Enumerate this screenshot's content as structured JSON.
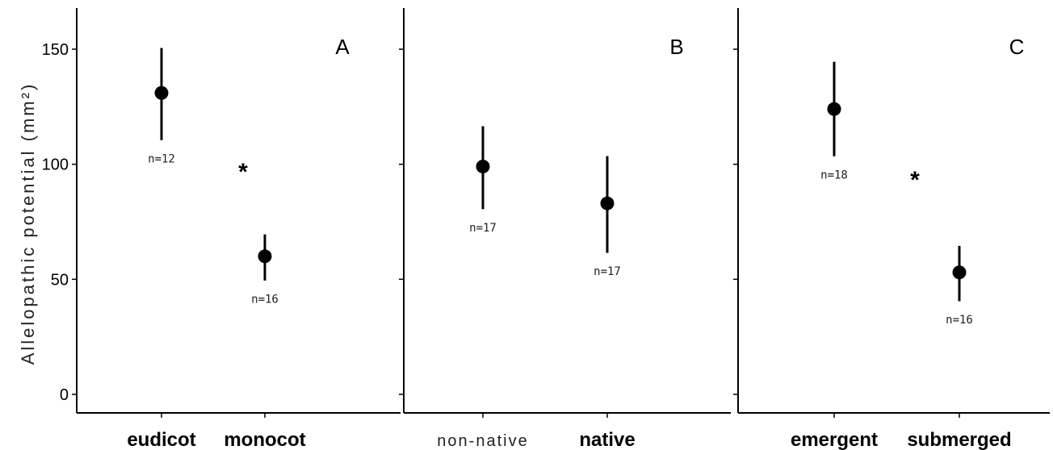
{
  "chart_data": [
    {
      "type": "scatter",
      "panel": "A",
      "ylabel": "Allelopathic potential (mm²)",
      "ylim": [
        0,
        165
      ],
      "yticks": [
        0,
        50,
        100,
        150
      ],
      "categories": [
        "eudicot",
        "monocot"
      ],
      "category_style": [
        "bold",
        "bold"
      ],
      "points": [
        {
          "category": "eudicot",
          "mean": 131,
          "lower": 111,
          "upper": 150,
          "n_label": "n=12"
        },
        {
          "category": "monocot",
          "mean": 60,
          "lower": 50,
          "upper": 69,
          "n_label": "n=16"
        }
      ],
      "significance": "*"
    },
    {
      "type": "scatter",
      "panel": "B",
      "ylim": [
        0,
        165
      ],
      "yticks": [
        0,
        50,
        100,
        150
      ],
      "categories": [
        "non-native",
        "native"
      ],
      "category_style": [
        "light",
        "bold"
      ],
      "points": [
        {
          "category": "non-native",
          "mean": 99,
          "lower": 81,
          "upper": 116,
          "n_label": "n=17"
        },
        {
          "category": "native",
          "mean": 83,
          "lower": 62,
          "upper": 103,
          "n_label": "n=17"
        }
      ],
      "significance": ""
    },
    {
      "type": "scatter",
      "panel": "C",
      "ylim": [
        0,
        165
      ],
      "yticks": [
        0,
        50,
        100,
        150
      ],
      "categories": [
        "emergent",
        "submerged"
      ],
      "category_style": [
        "bold",
        "bold"
      ],
      "points": [
        {
          "category": "emergent",
          "mean": 124,
          "lower": 104,
          "upper": 144,
          "n_label": "n=18"
        },
        {
          "category": "submerged",
          "mean": 53,
          "lower": 41,
          "upper": 64,
          "n_label": "n=16"
        }
      ],
      "significance": "*"
    }
  ],
  "colors": {
    "marker": "#000000",
    "axis": "#000000",
    "text": "#222222"
  }
}
